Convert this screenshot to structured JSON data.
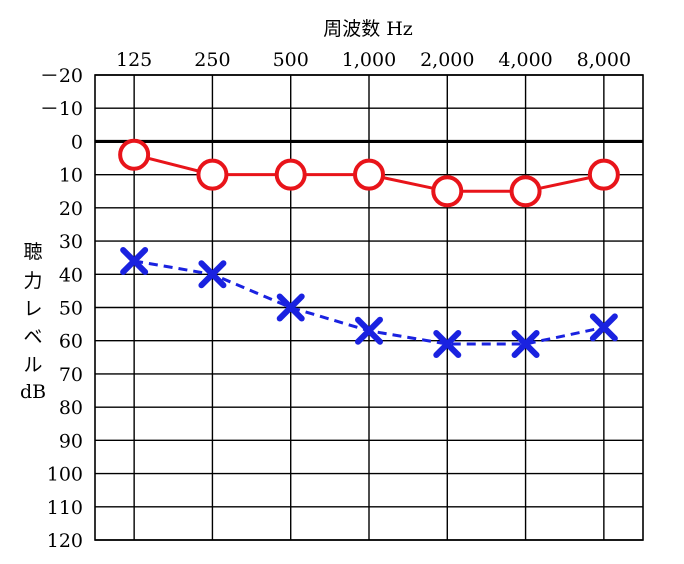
{
  "chart_data": {
    "type": "line",
    "title": "周波数 Hz",
    "xlabel": "周波数 Hz",
    "ylabel": [
      "聴",
      "力",
      "レ",
      "ベ",
      "ル",
      "dB"
    ],
    "categories": [
      "125",
      "250",
      "500",
      "1,000",
      "2,000",
      "4,000",
      "8,000"
    ],
    "y_ticks": [
      "－20",
      "－10",
      "0",
      "10",
      "20",
      "30",
      "40",
      "50",
      "60",
      "70",
      "80",
      "90",
      "100",
      "110",
      "120"
    ],
    "ylim": [
      -20,
      120
    ],
    "y_inverted": true,
    "grid": true,
    "series": [
      {
        "marker": "circle",
        "line_style": "solid",
        "color": "#e8141a",
        "values": [
          4,
          10,
          10,
          10,
          15,
          15,
          10
        ]
      },
      {
        "marker": "x",
        "line_style": "dashed",
        "color": "#1a22e0",
        "values": [
          36,
          40,
          50,
          57,
          61,
          61,
          56
        ]
      }
    ]
  }
}
